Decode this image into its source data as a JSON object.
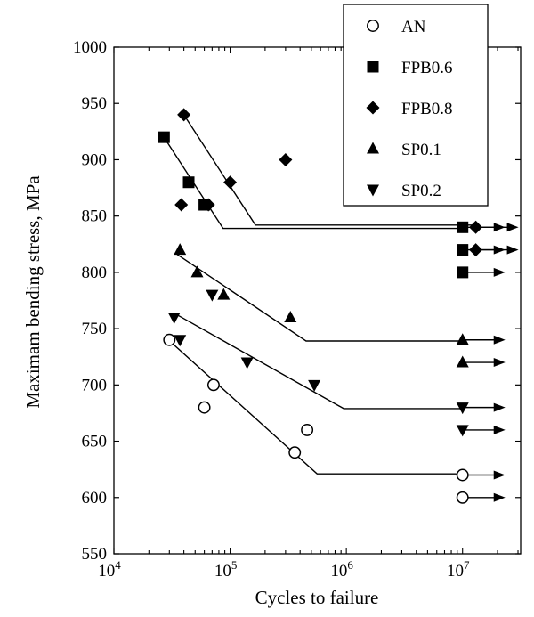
{
  "chart_data": {
    "type": "scatter",
    "title": "",
    "xlabel": "Cycles to failure",
    "ylabel": "Maximam bending stress, MPa",
    "xscale": "log",
    "xlim_log10": [
      4,
      7.5
    ],
    "ylim": [
      550,
      1000
    ],
    "x_ticks": [
      {
        "exp": 4,
        "base": "10",
        "sup": "4"
      },
      {
        "exp": 5,
        "base": "10",
        "sup": "5"
      },
      {
        "exp": 6,
        "base": "10",
        "sup": "6"
      },
      {
        "exp": 7,
        "base": "10",
        "sup": "7"
      }
    ],
    "y_ticks": [
      550,
      600,
      650,
      700,
      750,
      800,
      850,
      900,
      950,
      1000
    ],
    "legend_position": "top-right",
    "series": [
      {
        "name": "AN",
        "marker": "circle-open",
        "points": [
          [
            30000,
            740
          ],
          [
            60000,
            680
          ],
          [
            72000,
            700
          ],
          [
            360000,
            640
          ],
          [
            460000,
            660
          ]
        ],
        "runouts": [
          [
            10000000,
            620
          ],
          [
            10000000,
            600
          ]
        ],
        "fit": [
          [
            28000,
            742
          ],
          [
            560000,
            621
          ],
          [
            10000000,
            621
          ]
        ]
      },
      {
        "name": "FPB0.6",
        "marker": "square",
        "points": [
          [
            27000,
            920
          ],
          [
            44000,
            880
          ],
          [
            60000,
            860
          ]
        ],
        "runouts": [
          [
            10000000,
            840
          ],
          [
            10000000,
            820
          ],
          [
            10000000,
            800
          ]
        ],
        "fit": [
          [
            27000,
            920
          ],
          [
            87000,
            839
          ],
          [
            10000000,
            839
          ]
        ]
      },
      {
        "name": "FPB0.8",
        "marker": "diamond",
        "points": [
          [
            40000,
            940
          ],
          [
            38000,
            860
          ],
          [
            65000,
            860
          ],
          [
            100000,
            880
          ],
          [
            300000,
            900
          ]
        ],
        "runouts": [
          [
            13000000,
            840
          ],
          [
            13000000,
            820
          ]
        ],
        "fit": [
          [
            40000,
            940
          ],
          [
            165000,
            842
          ],
          [
            13000000,
            842
          ]
        ]
      },
      {
        "name": "SP0.1",
        "marker": "triangle-up",
        "points": [
          [
            37000,
            820
          ],
          [
            52000,
            800
          ],
          [
            88000,
            780
          ],
          [
            330000,
            760
          ]
        ],
        "runouts": [
          [
            10000000,
            740
          ],
          [
            10000000,
            720
          ]
        ],
        "fit": [
          [
            35000,
            816
          ],
          [
            450000,
            739
          ],
          [
            10000000,
            739
          ]
        ]
      },
      {
        "name": "SP0.2",
        "marker": "triangle-down",
        "points": [
          [
            33000,
            760
          ],
          [
            37000,
            740
          ],
          [
            70000,
            780
          ],
          [
            140000,
            720
          ],
          [
            530000,
            700
          ]
        ],
        "runouts": [
          [
            10000000,
            680
          ],
          [
            10000000,
            660
          ]
        ],
        "fit": [
          [
            34000,
            763
          ],
          [
            950000,
            679
          ],
          [
            10000000,
            679
          ]
        ]
      }
    ]
  }
}
